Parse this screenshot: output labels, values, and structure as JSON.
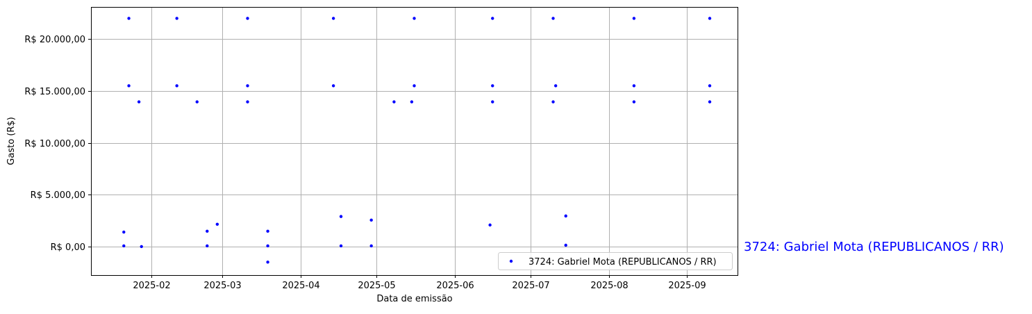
{
  "chart_data": {
    "type": "scatter",
    "title": "",
    "xlabel": "Data de emissão",
    "ylabel": "Gasto (R$)",
    "side_label": "3724: Gabriel Mota (REPUBLICANOS / RR)",
    "xlim": [
      "2025-01-08",
      "2025-09-21"
    ],
    "ylim": [
      -2750,
      23100
    ],
    "x_ticks": [
      "2025-02",
      "2025-03",
      "2025-04",
      "2025-05",
      "2025-06",
      "2025-07",
      "2025-08",
      "2025-09"
    ],
    "y_ticks": [
      {
        "value": 0,
        "label": "R$ 0,00"
      },
      {
        "value": 5000,
        "label": "R$ 5.000,00"
      },
      {
        "value": 10000,
        "label": "R$ 10.000,00"
      },
      {
        "value": 15000,
        "label": "R$ 15.000,00"
      },
      {
        "value": 20000,
        "label": "R$ 20.000,00"
      }
    ],
    "grid": true,
    "legend_position": "lower-right",
    "series": [
      {
        "name": "3724: Gabriel Mota (REPUBLICANOS / RR)",
        "color": "#0000ff",
        "points": [
          {
            "x": "2025-01-21",
            "y": 1400
          },
          {
            "x": "2025-01-21",
            "y": 70
          },
          {
            "x": "2025-01-23",
            "y": 22000
          },
          {
            "x": "2025-01-23",
            "y": 15500
          },
          {
            "x": "2025-01-27",
            "y": 13950
          },
          {
            "x": "2025-01-28",
            "y": 0
          },
          {
            "x": "2025-02-11",
            "y": 22000
          },
          {
            "x": "2025-02-11",
            "y": 15500
          },
          {
            "x": "2025-02-19",
            "y": 13950
          },
          {
            "x": "2025-02-23",
            "y": 1480
          },
          {
            "x": "2025-02-23",
            "y": 70
          },
          {
            "x": "2025-02-27",
            "y": 2150
          },
          {
            "x": "2025-03-11",
            "y": 22000
          },
          {
            "x": "2025-03-11",
            "y": 15500
          },
          {
            "x": "2025-03-11",
            "y": 13950
          },
          {
            "x": "2025-03-19",
            "y": 1480
          },
          {
            "x": "2025-03-19",
            "y": 70
          },
          {
            "x": "2025-03-19",
            "y": -1500
          },
          {
            "x": "2025-04-14",
            "y": 22000
          },
          {
            "x": "2025-04-14",
            "y": 15500
          },
          {
            "x": "2025-04-17",
            "y": 2900
          },
          {
            "x": "2025-04-17",
            "y": 70
          },
          {
            "x": "2025-04-29",
            "y": 2550
          },
          {
            "x": "2025-04-29",
            "y": 70
          },
          {
            "x": "2025-05-08",
            "y": 13950
          },
          {
            "x": "2025-05-15",
            "y": 13950
          },
          {
            "x": "2025-05-16",
            "y": 22000
          },
          {
            "x": "2025-05-16",
            "y": 15500
          },
          {
            "x": "2025-06-16",
            "y": 22000
          },
          {
            "x": "2025-06-16",
            "y": 15500
          },
          {
            "x": "2025-06-16",
            "y": 13950
          },
          {
            "x": "2025-06-15",
            "y": 2080
          },
          {
            "x": "2025-07-10",
            "y": 22000
          },
          {
            "x": "2025-07-10",
            "y": 13950
          },
          {
            "x": "2025-07-11",
            "y": 15500
          },
          {
            "x": "2025-07-15",
            "y": 2950
          },
          {
            "x": "2025-07-15",
            "y": 130
          },
          {
            "x": "2025-08-11",
            "y": 22000
          },
          {
            "x": "2025-08-11",
            "y": 15500
          },
          {
            "x": "2025-08-11",
            "y": 13950
          },
          {
            "x": "2025-09-10",
            "y": 22000
          },
          {
            "x": "2025-09-10",
            "y": 15500
          },
          {
            "x": "2025-09-10",
            "y": 13950
          }
        ]
      }
    ]
  }
}
